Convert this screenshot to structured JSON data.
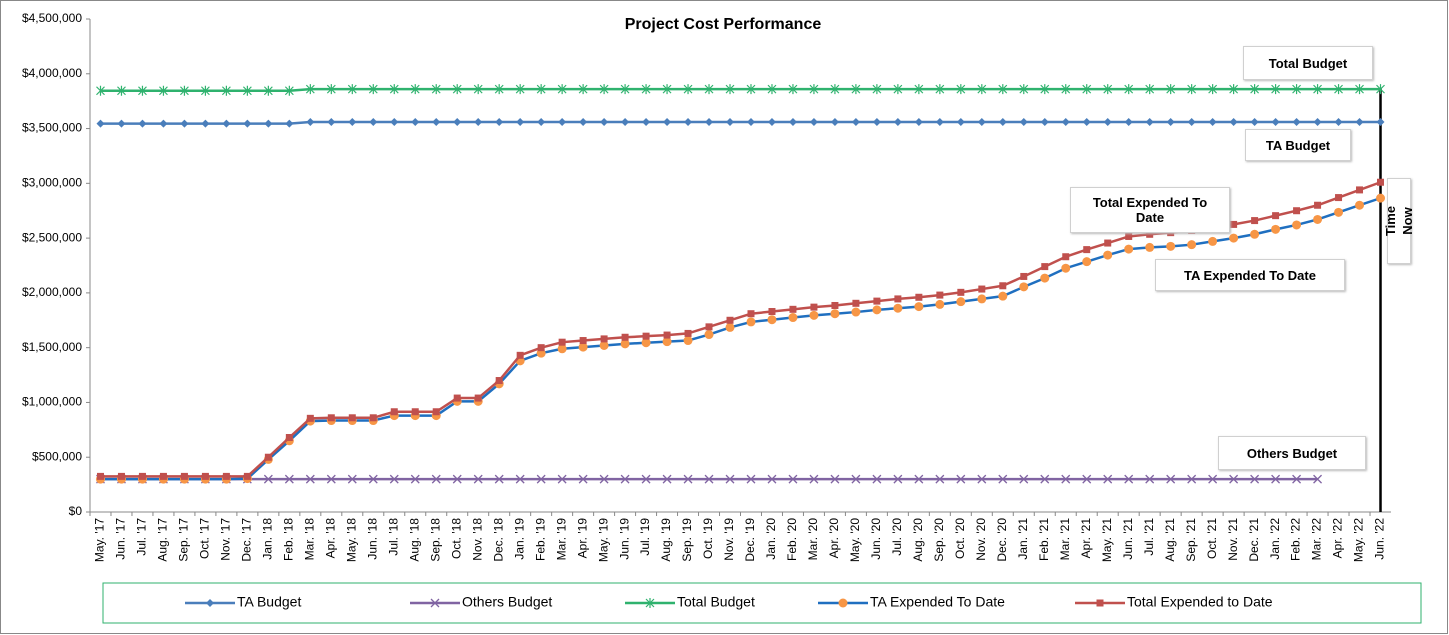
{
  "chart_data": {
    "type": "line",
    "title": "Project Cost Performance",
    "categories": [
      "May. '17",
      "Jun. '17",
      "Jul. '17",
      "Aug. '17",
      "Sep. '17",
      "Oct. '17",
      "Nov. '17",
      "Dec. '17",
      "Jan. '18",
      "Feb. '18",
      "Mar. '18",
      "Apr. '18",
      "May. '18",
      "Jun. '18",
      "Jul. '18",
      "Aug. '18",
      "Sep. '18",
      "Oct. '18",
      "Nov. '18",
      "Dec. '18",
      "Jan. '19",
      "Feb. '19",
      "Mar. '19",
      "Apr. '19",
      "May. '19",
      "Jun. '19",
      "Jul. '19",
      "Aug. '19",
      "Sep. '19",
      "Oct. '19",
      "Nov. '19",
      "Dec. '19",
      "Jan. '20",
      "Feb. '20",
      "Mar. '20",
      "Apr. '20",
      "May. '20",
      "Jun. '20",
      "Jul. '20",
      "Aug. '20",
      "Sep. '20",
      "Oct. '20",
      "Nov. '20",
      "Dec. '20",
      "Jan. '21",
      "Feb. '21",
      "Mar. '21",
      "Apr. '21",
      "May. '21",
      "Jun. '21",
      "Jul. '21",
      "Aug. '21",
      "Sep. '21",
      "Oct. '21",
      "Nov. '21",
      "Dec. '21",
      "Jan. '22",
      "Feb. '22",
      "Mar. '22",
      "Apr. '22",
      "May. '22",
      "Jun. '22"
    ],
    "series": [
      {
        "name": "TA Budget",
        "color": "#4a7ebb",
        "marker": "diamond",
        "values": [
          3545000,
          3545000,
          3545000,
          3545000,
          3545000,
          3545000,
          3545000,
          3545000,
          3545000,
          3545000,
          3560000,
          3560000,
          3560000,
          3560000,
          3560000,
          3560000,
          3560000,
          3560000,
          3560000,
          3560000,
          3560000,
          3560000,
          3560000,
          3560000,
          3560000,
          3560000,
          3560000,
          3560000,
          3560000,
          3560000,
          3560000,
          3560000,
          3560000,
          3560000,
          3560000,
          3560000,
          3560000,
          3560000,
          3560000,
          3560000,
          3560000,
          3560000,
          3560000,
          3560000,
          3560000,
          3560000,
          3560000,
          3560000,
          3560000,
          3560000,
          3560000,
          3560000,
          3560000,
          3560000,
          3560000,
          3560000,
          3560000,
          3560000,
          3560000,
          3560000,
          3560000,
          3560000
        ]
      },
      {
        "name": "Others Budget",
        "color": "#8064a2",
        "marker": "x",
        "values": [
          300000,
          300000,
          300000,
          300000,
          300000,
          300000,
          300000,
          300000,
          300000,
          300000,
          300000,
          300000,
          300000,
          300000,
          300000,
          300000,
          300000,
          300000,
          300000,
          300000,
          300000,
          300000,
          300000,
          300000,
          300000,
          300000,
          300000,
          300000,
          300000,
          300000,
          300000,
          300000,
          300000,
          300000,
          300000,
          300000,
          300000,
          300000,
          300000,
          300000,
          300000,
          300000,
          300000,
          300000,
          300000,
          300000,
          300000,
          300000,
          300000,
          300000,
          300000,
          300000,
          300000,
          300000,
          300000,
          300000,
          300000,
          300000,
          300000,
          null,
          null,
          null
        ]
      },
      {
        "name": "Total Budget",
        "color": "#2fb26e",
        "marker": "star",
        "values": [
          3845000,
          3845000,
          3845000,
          3845000,
          3845000,
          3845000,
          3845000,
          3845000,
          3845000,
          3845000,
          3860000,
          3860000,
          3860000,
          3860000,
          3860000,
          3860000,
          3860000,
          3860000,
          3860000,
          3860000,
          3860000,
          3860000,
          3860000,
          3860000,
          3860000,
          3860000,
          3860000,
          3860000,
          3860000,
          3860000,
          3860000,
          3860000,
          3860000,
          3860000,
          3860000,
          3860000,
          3860000,
          3860000,
          3860000,
          3860000,
          3860000,
          3860000,
          3860000,
          3860000,
          3860000,
          3860000,
          3860000,
          3860000,
          3860000,
          3860000,
          3860000,
          3860000,
          3860000,
          3860000,
          3860000,
          3860000,
          3860000,
          3860000,
          3860000,
          3860000,
          3860000,
          3860000
        ]
      },
      {
        "name": "TA Expended To Date",
        "color": "#1f6fc0",
        "marker": "circle",
        "marker_color": "#f79646",
        "values": [
          300000,
          300000,
          300000,
          300000,
          300000,
          300000,
          300000,
          305000,
          480000,
          650000,
          830000,
          835000,
          835000,
          835000,
          880000,
          880000,
          880000,
          1010000,
          1010000,
          1170000,
          1380000,
          1450000,
          1490000,
          1505000,
          1520000,
          1535000,
          1545000,
          1555000,
          1565000,
          1620000,
          1685000,
          1735000,
          1755000,
          1775000,
          1795000,
          1810000,
          1825000,
          1845000,
          1860000,
          1875000,
          1895000,
          1920000,
          1945000,
          1970000,
          2055000,
          2135000,
          2225000,
          2285000,
          2345000,
          2400000,
          2415000,
          2425000,
          2440000,
          2470000,
          2500000,
          2535000,
          2580000,
          2620000,
          2670000,
          2735000,
          2800000,
          2865000
        ]
      },
      {
        "name": "Total Expended to Date",
        "color": "#c0504d",
        "marker": "square",
        "values": [
          325000,
          325000,
          325000,
          325000,
          325000,
          325000,
          325000,
          325000,
          500000,
          680000,
          855000,
          860000,
          860000,
          860000,
          915000,
          915000,
          915000,
          1040000,
          1040000,
          1200000,
          1430000,
          1500000,
          1550000,
          1565000,
          1580000,
          1595000,
          1605000,
          1615000,
          1630000,
          1690000,
          1750000,
          1810000,
          1830000,
          1850000,
          1870000,
          1885000,
          1905000,
          1925000,
          1945000,
          1960000,
          1980000,
          2005000,
          2035000,
          2065000,
          2150000,
          2240000,
          2330000,
          2395000,
          2455000,
          2515000,
          2535000,
          2550000,
          2570000,
          2600000,
          2625000,
          2660000,
          2705000,
          2750000,
          2800000,
          2870000,
          2940000,
          3010000
        ]
      }
    ],
    "ylim": [
      0,
      4500000
    ],
    "yticks": [
      {
        "value": 0,
        "label": "$0"
      },
      {
        "value": 500000,
        "label": "$500,000"
      },
      {
        "value": 1000000,
        "label": "$1,000,000"
      },
      {
        "value": 1500000,
        "label": "$1,500,000"
      },
      {
        "value": 2000000,
        "label": "$2,000,000"
      },
      {
        "value": 2500000,
        "label": "$2,500,000"
      },
      {
        "value": 3000000,
        "label": "$3,000,000"
      },
      {
        "value": 3500000,
        "label": "$3,500,000"
      },
      {
        "value": 4000000,
        "label": "$4,000,000"
      },
      {
        "value": 4500000,
        "label": "$4,500,000"
      }
    ],
    "grid": false,
    "legend": "bottom",
    "annotations": [
      "Total  Budget",
      "TA Budget",
      "Total Expended To Date",
      "TA Expended To Date",
      "Others Budget",
      "Time Now"
    ]
  }
}
